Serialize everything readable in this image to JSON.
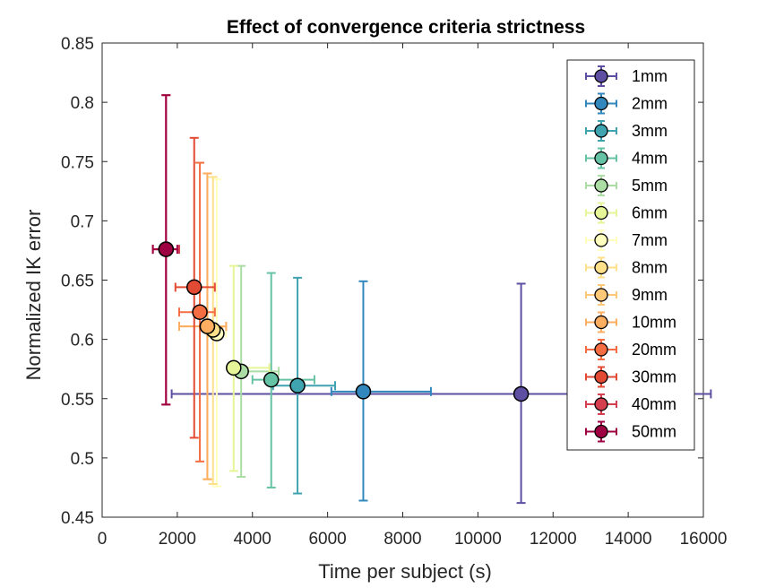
{
  "chart_data": {
    "type": "scatter",
    "title": "Effect of convergence criteria strictness",
    "xlabel": "Time per subject (s)",
    "ylabel": "Normalized IK error",
    "xlim": [
      0,
      16000
    ],
    "ylim": [
      0.45,
      0.85
    ],
    "xticks": [
      0,
      2000,
      4000,
      6000,
      8000,
      10000,
      12000,
      14000,
      16000
    ],
    "xtick_labels": [
      "0",
      "2000",
      "4000",
      "6000",
      "8000",
      "10000",
      "12000",
      "14000",
      "16000"
    ],
    "yticks": [
      0.45,
      0.5,
      0.55,
      0.6,
      0.65,
      0.7,
      0.75,
      0.8,
      0.85
    ],
    "ytick_labels": [
      "0.45",
      "0.5",
      "0.55",
      "0.6",
      "0.65",
      "0.7",
      "0.75",
      "0.8",
      "0.85"
    ],
    "grid": false,
    "legend_position": "top-right",
    "error_bars": "x and y",
    "series": [
      {
        "name": "1mm",
        "color": "#5e4fa2",
        "x": 11150,
        "y": 0.554,
        "xerr": [
          1850,
          16200
        ],
        "yerr": [
          0.462,
          0.647
        ]
      },
      {
        "name": "2mm",
        "color": "#3288bd",
        "x": 6950,
        "y": 0.556,
        "xerr": [
          6100,
          8750
        ],
        "yerr": [
          0.464,
          0.649
        ]
      },
      {
        "name": "3mm",
        "color": "#3fa3b0",
        "x": 5200,
        "y": 0.561,
        "xerr": [
          4550,
          6200
        ],
        "yerr": [
          0.47,
          0.652
        ]
      },
      {
        "name": "4mm",
        "color": "#66c2a5",
        "x": 4500,
        "y": 0.566,
        "xerr": [
          4000,
          5650
        ],
        "yerr": [
          0.475,
          0.656
        ]
      },
      {
        "name": "5mm",
        "color": "#abdda4",
        "x": 3700,
        "y": 0.573,
        "xerr": [
          3450,
          4700
        ],
        "yerr": [
          0.484,
          0.662
        ]
      },
      {
        "name": "6mm",
        "color": "#e6f598",
        "x": 3500,
        "y": 0.576,
        "xerr": [
          3400,
          4450
        ],
        "yerr": [
          0.489,
          0.662
        ]
      },
      {
        "name": "7mm",
        "color": "#ffffbf",
        "x": 3050,
        "y": 0.605,
        "xerr": [
          2850,
          3300
        ],
        "yerr": [
          0.476,
          0.735
        ]
      },
      {
        "name": "8mm",
        "color": "#fee08b",
        "x": 2950,
        "y": 0.608,
        "xerr": [
          2750,
          3200
        ],
        "yerr": [
          0.478,
          0.737
        ]
      },
      {
        "name": "9mm",
        "color": "#fdc978",
        "x": 2800,
        "y": 0.611,
        "xerr": [
          2050,
          3300
        ],
        "yerr": [
          0.482,
          0.74
        ]
      },
      {
        "name": "10mm",
        "color": "#fdae61",
        "x": 2800,
        "y": 0.611,
        "xerr": [
          2050,
          3300
        ],
        "yerr": [
          0.482,
          0.74
        ]
      },
      {
        "name": "20mm",
        "color": "#f46d43",
        "x": 2600,
        "y": 0.623,
        "xerr": [
          2050,
          3000
        ],
        "yerr": [
          0.497,
          0.749
        ]
      },
      {
        "name": "30mm",
        "color": "#e34a33",
        "x": 2450,
        "y": 0.644,
        "xerr": [
          1950,
          3000
        ],
        "yerr": [
          0.517,
          0.77
        ]
      },
      {
        "name": "40mm",
        "color": "#d53e4f",
        "x": 1700,
        "y": 0.676,
        "xerr": [
          1350,
          2050
        ],
        "yerr": [
          0.545,
          0.806
        ]
      },
      {
        "name": "50mm",
        "color": "#9e0142",
        "x": 1700,
        "y": 0.676,
        "xerr": [
          1350,
          2000
        ],
        "yerr": [
          0.545,
          0.806
        ]
      }
    ]
  }
}
